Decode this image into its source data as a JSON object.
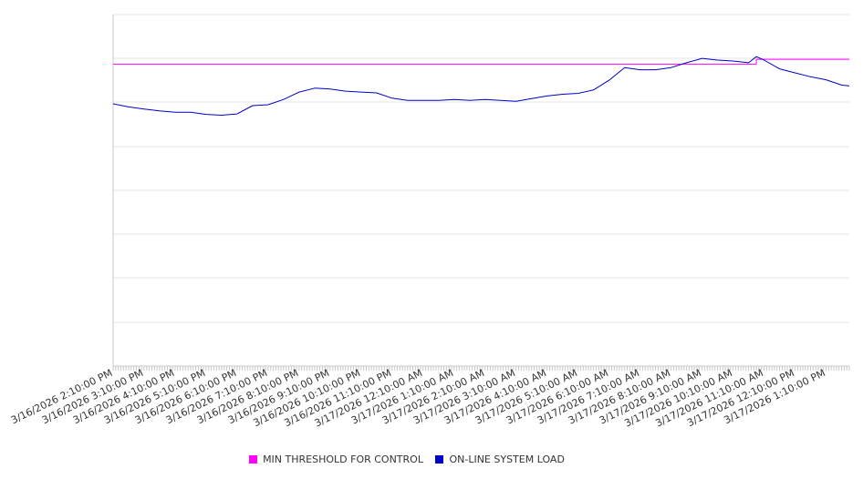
{
  "chart_data": {
    "type": "line",
    "categories": [
      "3/16/2026 2:10:00 PM",
      "3/16/2026 3:10:00 PM",
      "3/16/2026 4:10:00 PM",
      "3/16/2026 5:10:00 PM",
      "3/16/2026 6:10:00 PM",
      "3/16/2026 7:10:00 PM",
      "3/16/2026 8:10:00 PM",
      "3/16/2026 9:10:00 PM",
      "3/16/2026 10:10:00 PM",
      "3/16/2026 11:10:00 PM",
      "3/17/2026 12:10:00 AM",
      "3/17/2026 1:10:00 AM",
      "3/17/2026 2:10:00 AM",
      "3/17/2026 3:10:00 AM",
      "3/17/2026 4:10:00 AM",
      "3/17/2026 5:10:00 AM",
      "3/17/2026 6:10:00 AM",
      "3/17/2026 7:10:00 AM",
      "3/17/2026 8:10:00 AM",
      "3/17/2026 9:10:00 AM",
      "3/17/2026 10:10:00 AM",
      "3/17/2026 11:10:00 AM",
      "3/17/2026 12:10:00 PM",
      "3/17/2026 1:10:00 PM"
    ],
    "x_range": [
      "3/16/2026 2:10:00 PM",
      "3/17/2026 1:55:00 PM"
    ],
    "y_grid_lines": 8,
    "grid": true,
    "legend_position": "bottom-center",
    "series": [
      {
        "name": "MIN THRESHOLD FOR CONTROL",
        "color": "#ff00ff",
        "x": [
          "3/16/2026 2:10:00 PM",
          "3/17/2026 10:55:00 AM",
          "3/17/2026 10:55:00 AM",
          "3/17/2026 1:55:00 PM"
        ],
        "values": [
          6.93,
          6.93,
          7.04,
          7.04
        ]
      },
      {
        "name": "ON-LINE SYSTEM LOAD",
        "color": "#0000cc",
        "x": [
          "3/16/2026 2:10:00 PM",
          "3/16/2026 2:40:00 PM",
          "3/16/2026 3:10:00 PM",
          "3/16/2026 3:40:00 PM",
          "3/16/2026 4:10:00 PM",
          "3/16/2026 4:40:00 PM",
          "3/16/2026 5:10:00 PM",
          "3/16/2026 5:40:00 PM",
          "3/16/2026 6:10:00 PM",
          "3/16/2026 6:40:00 PM",
          "3/16/2026 7:10:00 PM",
          "3/16/2026 7:40:00 PM",
          "3/16/2026 8:10:00 PM",
          "3/16/2026 8:40:00 PM",
          "3/16/2026 9:10:00 PM",
          "3/16/2026 9:40:00 PM",
          "3/16/2026 10:10:00 PM",
          "3/16/2026 10:40:00 PM",
          "3/16/2026 11:10:00 PM",
          "3/16/2026 11:40:00 PM",
          "3/17/2026 12:10:00 AM",
          "3/17/2026 12:40:00 AM",
          "3/17/2026 1:10:00 AM",
          "3/17/2026 1:40:00 AM",
          "3/17/2026 2:10:00 AM",
          "3/17/2026 2:40:00 AM",
          "3/17/2026 3:10:00 AM",
          "3/17/2026 3:40:00 AM",
          "3/17/2026 4:10:00 AM",
          "3/17/2026 4:40:00 AM",
          "3/17/2026 5:10:00 AM",
          "3/17/2026 5:40:00 AM",
          "3/17/2026 6:10:00 AM",
          "3/17/2026 6:40:00 AM",
          "3/17/2026 7:10:00 AM",
          "3/17/2026 7:40:00 AM",
          "3/17/2026 8:10:00 AM",
          "3/17/2026 8:40:00 AM",
          "3/17/2026 9:10:00 AM",
          "3/17/2026 9:40:00 AM",
          "3/17/2026 10:10:00 AM",
          "3/17/2026 10:40:00 AM",
          "3/17/2026 10:55:00 AM",
          "3/17/2026 11:10:00 AM",
          "3/17/2026 11:40:00 AM",
          "3/17/2026 12:10:00 PM",
          "3/17/2026 12:40:00 PM",
          "3/17/2026 1:10:00 PM",
          "3/17/2026 1:40:00 PM",
          "3/17/2026 1:55:00 PM"
        ],
        "values": [
          6.02,
          5.95,
          5.9,
          5.86,
          5.83,
          5.83,
          5.78,
          5.76,
          5.79,
          5.98,
          6.0,
          6.12,
          6.29,
          6.38,
          6.36,
          6.31,
          6.29,
          6.27,
          6.15,
          6.1,
          6.1,
          6.1,
          6.12,
          6.1,
          6.12,
          6.1,
          6.08,
          6.14,
          6.2,
          6.24,
          6.26,
          6.34,
          6.56,
          6.85,
          6.8,
          6.8,
          6.85,
          6.96,
          7.06,
          7.02,
          7.0,
          6.96,
          7.1,
          7.02,
          6.82,
          6.73,
          6.64,
          6.57,
          6.45,
          6.43
        ]
      }
    ]
  }
}
